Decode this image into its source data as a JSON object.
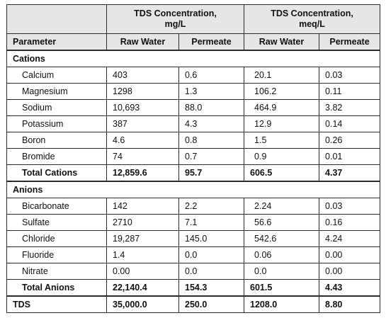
{
  "header": {
    "mg_group": "TDS Concentration,\nmg/L",
    "meq_group": "TDS Concentration,\nmeq/L",
    "parameter": "Parameter",
    "raw_water_1": "Raw Water",
    "permeate_1": "Permeate",
    "raw_water_2": "Raw Water",
    "permeate_2": "Permeate"
  },
  "cations": {
    "title": "Cations",
    "rows": [
      [
        "Calcium",
        "403",
        "0.6",
        "20.1",
        "0.03"
      ],
      [
        "Magnesium",
        "1298",
        "1.3",
        "106.2",
        "0.11"
      ],
      [
        "Sodium",
        "10,693",
        "88.0",
        "464.9",
        "3.82"
      ],
      [
        "Potassium",
        "387",
        "4.3",
        "12.9",
        "0.14"
      ],
      [
        "Boron",
        "4.6",
        "0.8",
        "1.5",
        "0.26"
      ],
      [
        "Bromide",
        "74",
        "0.7",
        "0.9",
        "0.01"
      ]
    ],
    "total": [
      "Total Cations",
      "12,859.6",
      "95.7",
      "606.5",
      "4.37"
    ]
  },
  "anions": {
    "title": "Anions",
    "rows": [
      [
        "Bicarbonate",
        "142",
        "2.2",
        "2.24",
        "0.03"
      ],
      [
        "Sulfate",
        "2710",
        "7.1",
        "56.6",
        "0.16"
      ],
      [
        "Chloride",
        "19,287",
        "145.0",
        "542.6",
        "4.24"
      ],
      [
        "Fluoride",
        "1.4",
        "0.0",
        "0.06",
        "0.00"
      ],
      [
        "Nitrate",
        "0.00",
        "0.0",
        "0.0",
        "0.00"
      ]
    ],
    "total": [
      "Total Anions",
      "22,140.4",
      "154.3",
      "601.5",
      "4.43"
    ]
  },
  "tds": [
    "TDS",
    "35,000.0",
    "250.0",
    "1208.0",
    "8.80"
  ]
}
